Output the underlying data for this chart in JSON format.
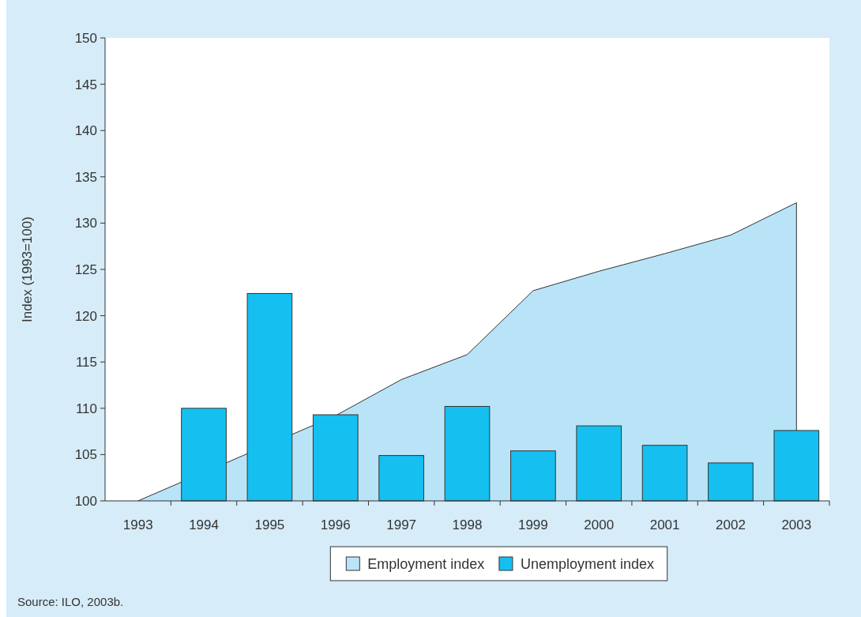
{
  "chart_data": {
    "type": "bar",
    "ylabel": "Index (1993=100)",
    "categories": [
      "1993",
      "1994",
      "1995",
      "1996",
      "1997",
      "1998",
      "1999",
      "2000",
      "2001",
      "2002",
      "2003"
    ],
    "series": [
      {
        "name": "Employment index",
        "type": "area",
        "color": "#b9e4f7",
        "values": [
          100,
          null,
          null,
          109.2,
          113.1,
          115.8,
          122.7,
          124.8,
          126.7,
          128.7,
          132.2
        ]
      },
      {
        "name": "Unemployment index",
        "color": "#15c0f0",
        "values": [
          null,
          110.0,
          122.4,
          109.3,
          104.9,
          110.2,
          105.4,
          108.1,
          106.0,
          104.1,
          107.6
        ]
      }
    ],
    "ylim": [
      100,
      150
    ],
    "yticks": [
      100,
      105,
      110,
      115,
      120,
      125,
      130,
      135,
      140,
      145,
      150
    ],
    "grid": false,
    "legend": "bottom",
    "annotations": [
      "Source: ILO, 2003b."
    ]
  }
}
